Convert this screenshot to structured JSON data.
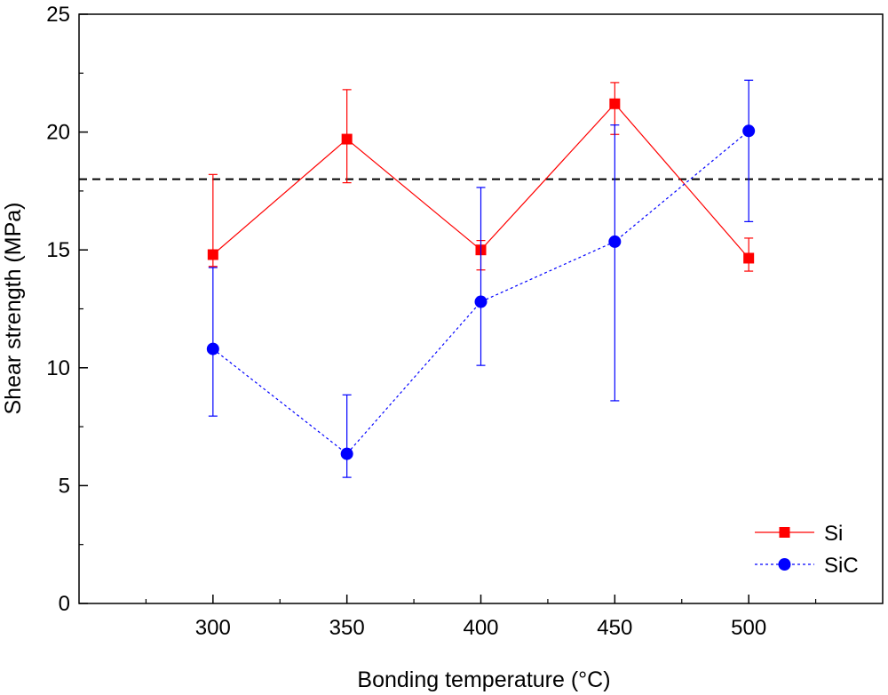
{
  "chart_data": {
    "type": "scatter",
    "title": "",
    "xlabel": "Bonding temperature (°C)",
    "ylabel": "Shear strength (MPa)",
    "xlim": [
      250,
      550
    ],
    "ylim": [
      0,
      25
    ],
    "x_ticks": [
      300,
      350,
      400,
      450,
      500
    ],
    "y_ticks": [
      0,
      5,
      10,
      15,
      20,
      25
    ],
    "grid": false,
    "legend_position": "bottom-right",
    "reference_line": {
      "y": 18,
      "style": "dashed",
      "color": "#000000"
    },
    "series": [
      {
        "name": "Si",
        "color": "#ff0000",
        "marker": "square",
        "line_style": "solid",
        "x": [
          300,
          350,
          400,
          450,
          500
        ],
        "y": [
          14.8,
          19.7,
          15.0,
          21.2,
          14.65
        ],
        "err_upper": [
          18.2,
          21.8,
          15.4,
          22.1,
          15.5
        ],
        "err_lower": [
          14.3,
          17.85,
          14.15,
          19.9,
          14.1
        ]
      },
      {
        "name": "SiC",
        "color": "#0000ff",
        "marker": "circle",
        "line_style": "dotted",
        "x": [
          300,
          350,
          400,
          450,
          500
        ],
        "y": [
          10.8,
          6.35,
          12.8,
          15.35,
          20.05
        ],
        "err_upper": [
          14.25,
          8.85,
          17.65,
          20.3,
          22.2
        ],
        "err_lower": [
          7.95,
          5.35,
          10.1,
          8.6,
          16.2
        ]
      }
    ]
  }
}
